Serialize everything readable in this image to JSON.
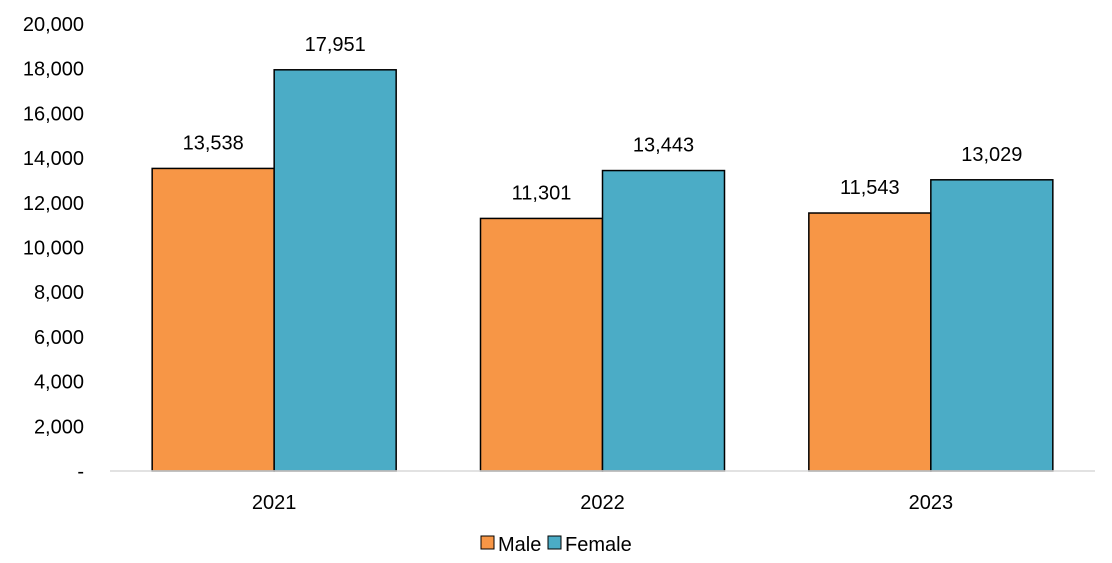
{
  "chart_data": {
    "type": "bar",
    "categories": [
      "2021",
      "2022",
      "2023"
    ],
    "series": [
      {
        "name": "Male",
        "values": [
          13538,
          11301,
          11543
        ],
        "labels": [
          "13,538",
          "11,301",
          "11,543"
        ],
        "color": "#F79646"
      },
      {
        "name": "Female",
        "values": [
          17951,
          13443,
          13029
        ],
        "labels": [
          "17,951",
          "13,443",
          "13,029"
        ],
        "color": "#4BACC6"
      }
    ],
    "title": "",
    "xlabel": "",
    "ylabel": "",
    "ylim": [
      0,
      20000
    ],
    "yticks": [
      0,
      2000,
      4000,
      6000,
      8000,
      10000,
      12000,
      14000,
      16000,
      18000,
      20000
    ],
    "ytick_labels": [
      "-",
      "2,000",
      "4,000",
      "6,000",
      "8,000",
      "10,000",
      "12,000",
      "14,000",
      "16,000",
      "18,000",
      "20,000"
    ],
    "grid": false,
    "legend": "bottom",
    "bar_outline_color": "#000000",
    "axis_color": "#D9D9D9"
  }
}
